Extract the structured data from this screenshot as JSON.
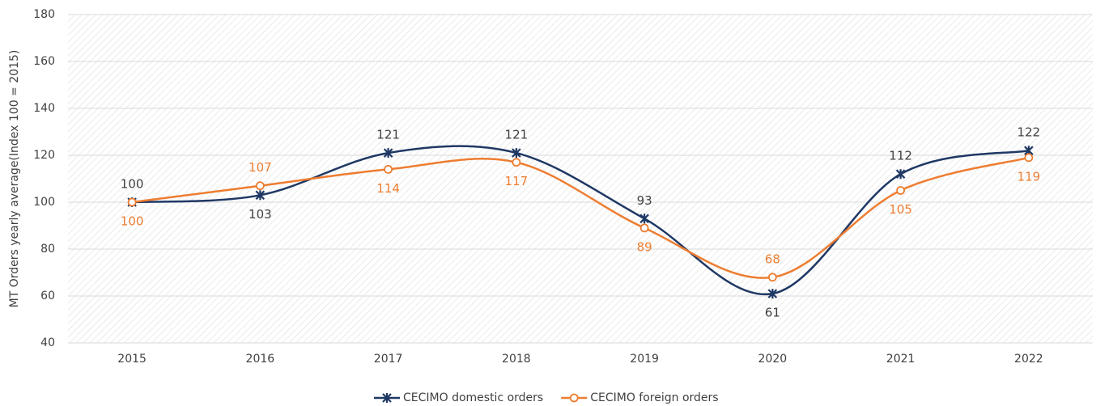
{
  "chart_data": {
    "type": "line",
    "ylabel": "MT Orders yearly average(Index 100 = 2015)",
    "categories": [
      "2015",
      "2016",
      "2017",
      "2018",
      "2019",
      "2020",
      "2021",
      "2022"
    ],
    "series": [
      {
        "name": "CECIMO domestic orders",
        "color": "#1f3864",
        "marker": "star",
        "values": [
          100,
          103,
          121,
          121,
          93,
          61,
          112,
          122
        ]
      },
      {
        "name": "CECIMO foreign orders",
        "color": "#ed7d31",
        "marker": "circle",
        "values": [
          100,
          107,
          114,
          117,
          89,
          68,
          105,
          119
        ]
      }
    ],
    "ylim": [
      40,
      180
    ],
    "yticks": [
      40,
      60,
      80,
      100,
      120,
      140,
      160,
      180
    ],
    "grid": true,
    "smooth": true,
    "legend": "bottom"
  }
}
